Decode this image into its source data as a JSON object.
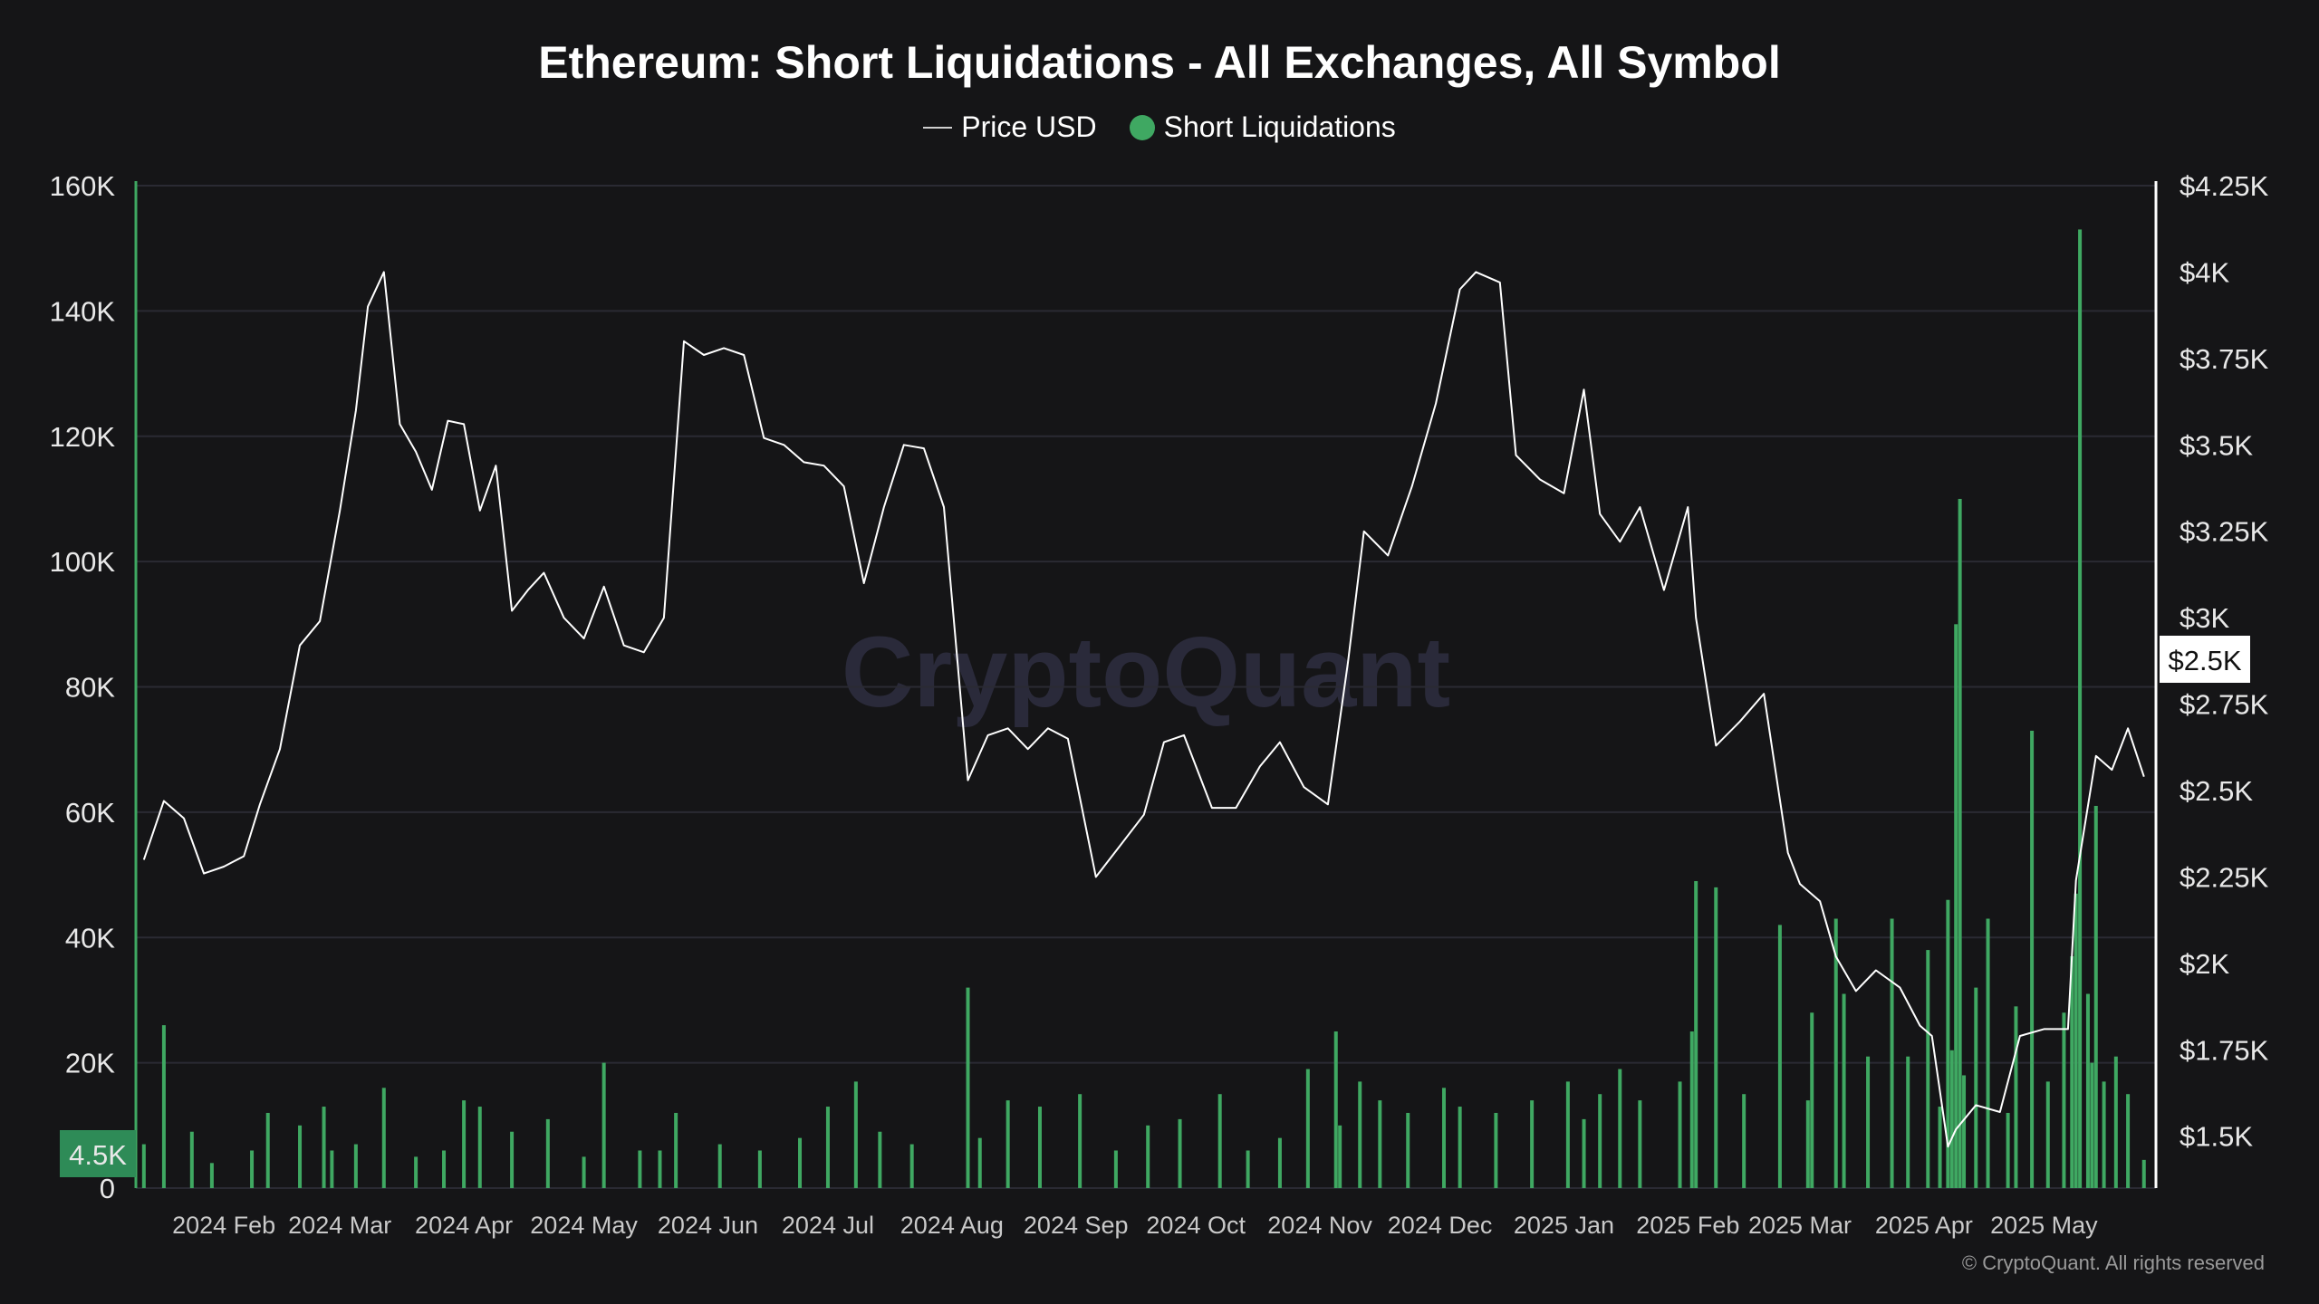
{
  "title": "Ethereum: Short Liquidations - All Exchanges, All Symbol",
  "legend": {
    "price": "Price USD",
    "short": "Short Liquidations"
  },
  "watermark": "CryptoQuant",
  "copyright": "© CryptoQuant. All rights reserved",
  "colors": {
    "background": "#151517",
    "price_line": "#ffffff",
    "bars": "#3fa862",
    "badge": "#2e8b57",
    "grid": "#2a2a33"
  },
  "chart_data": {
    "type": "bar",
    "title": "Ethereum: Short Liquidations - All Exchanges, All Symbol",
    "left_axis": {
      "ticks": [
        "0",
        "20K",
        "40K",
        "60K",
        "80K",
        "100K",
        "120K",
        "140K",
        "160K"
      ],
      "ylim": [
        0,
        160000
      ],
      "current_badge": "4.5K"
    },
    "right_axis": {
      "ticks": [
        "$1.5K",
        "$1.75K",
        "$2K",
        "$2.25K",
        "$2.5K",
        "$2.75K",
        "$3K",
        "$3.25K",
        "$3.5K",
        "$3.75K",
        "$4K",
        "$4.25K"
      ],
      "ylim": [
        1350,
        4250
      ],
      "current_badge": "$2.5K"
    },
    "x_labels": [
      "2024 Feb",
      "2024 Mar",
      "2024 Apr",
      "2024 May",
      "2024 Jun",
      "2024 Jul",
      "2024 Aug",
      "2024 Sep",
      "2024 Oct",
      "2024 Nov",
      "2024 Dec",
      "2025 Jan",
      "2025 Feb",
      "2025 Mar",
      "2025 Apr",
      "2025 May"
    ],
    "grid": true,
    "legend_position": "top-center",
    "series": [
      {
        "name": "Price USD",
        "type": "line",
        "axis": "right",
        "x": [
          "2024-01-12",
          "2024-01-17",
          "2024-01-22",
          "2024-01-27",
          "2024-02-01",
          "2024-02-06",
          "2024-02-10",
          "2024-02-15",
          "2024-02-20",
          "2024-02-25",
          "2024-03-01",
          "2024-03-05",
          "2024-03-08",
          "2024-03-12",
          "2024-03-16",
          "2024-03-20",
          "2024-03-24",
          "2024-03-28",
          "2024-04-01",
          "2024-04-05",
          "2024-04-09",
          "2024-04-13",
          "2024-04-17",
          "2024-04-21",
          "2024-04-26",
          "2024-05-01",
          "2024-05-06",
          "2024-05-11",
          "2024-05-16",
          "2024-05-21",
          "2024-05-26",
          "2024-05-31",
          "2024-06-05",
          "2024-06-10",
          "2024-06-15",
          "2024-06-20",
          "2024-06-25",
          "2024-06-30",
          "2024-07-05",
          "2024-07-10",
          "2024-07-15",
          "2024-07-20",
          "2024-07-25",
          "2024-07-30",
          "2024-08-05",
          "2024-08-10",
          "2024-08-15",
          "2024-08-20",
          "2024-08-25",
          "2024-08-30",
          "2024-09-06",
          "2024-09-12",
          "2024-09-18",
          "2024-09-23",
          "2024-09-28",
          "2024-10-05",
          "2024-10-11",
          "2024-10-17",
          "2024-10-22",
          "2024-10-28",
          "2024-11-03",
          "2024-11-08",
          "2024-11-12",
          "2024-11-18",
          "2024-11-24",
          "2024-11-30",
          "2024-12-06",
          "2024-12-10",
          "2024-12-16",
          "2024-12-20",
          "2024-12-26",
          "2025-01-01",
          "2025-01-06",
          "2025-01-10",
          "2025-01-15",
          "2025-01-20",
          "2025-01-26",
          "2025-02-01",
          "2025-02-03",
          "2025-02-08",
          "2025-02-14",
          "2025-02-20",
          "2025-02-26",
          "2025-03-01",
          "2025-03-06",
          "2025-03-10",
          "2025-03-15",
          "2025-03-20",
          "2025-03-26",
          "2025-03-31",
          "2025-04-03",
          "2025-04-07",
          "2025-04-09",
          "2025-04-14",
          "2025-04-20",
          "2025-04-25",
          "2025-05-01",
          "2025-05-07",
          "2025-05-09",
          "2025-05-14",
          "2025-05-18",
          "2025-05-22",
          "2025-05-26"
        ],
        "y": [
          2300,
          2470,
          2420,
          2260,
          2280,
          2310,
          2460,
          2620,
          2920,
          2990,
          3310,
          3600,
          3900,
          4000,
          3560,
          3480,
          3370,
          3570,
          3560,
          3310,
          3440,
          3020,
          3080,
          3130,
          3000,
          2940,
          3090,
          2920,
          2900,
          3000,
          3800,
          3760,
          3780,
          3760,
          3520,
          3500,
          3450,
          3440,
          3380,
          3100,
          3320,
          3500,
          3490,
          3320,
          2530,
          2660,
          2680,
          2620,
          2680,
          2650,
          2250,
          2340,
          2430,
          2640,
          2660,
          2450,
          2450,
          2570,
          2640,
          2510,
          2460,
          2870,
          3250,
          3180,
          3380,
          3620,
          3950,
          4000,
          3970,
          3470,
          3400,
          3360,
          3660,
          3300,
          3220,
          3320,
          3080,
          3320,
          3000,
          2630,
          2700,
          2780,
          2320,
          2230,
          2180,
          2020,
          1920,
          1980,
          1930,
          1820,
          1790,
          1470,
          1520,
          1590,
          1570,
          1790,
          1810,
          1810,
          2240,
          2600,
          2560,
          2680,
          2540
        ]
      },
      {
        "name": "Short Liquidations",
        "type": "bar",
        "axis": "left",
        "x": [
          "2024-01-12",
          "2024-01-17",
          "2024-01-24",
          "2024-01-29",
          "2024-02-08",
          "2024-02-12",
          "2024-02-20",
          "2024-02-26",
          "2024-02-28",
          "2024-03-05",
          "2024-03-12",
          "2024-03-20",
          "2024-03-27",
          "2024-04-01",
          "2024-04-05",
          "2024-04-13",
          "2024-04-22",
          "2024-05-01",
          "2024-05-06",
          "2024-05-15",
          "2024-05-20",
          "2024-05-24",
          "2024-06-04",
          "2024-06-14",
          "2024-06-24",
          "2024-07-01",
          "2024-07-08",
          "2024-07-14",
          "2024-07-22",
          "2024-08-05",
          "2024-08-08",
          "2024-08-15",
          "2024-08-23",
          "2024-09-02",
          "2024-09-11",
          "2024-09-19",
          "2024-09-27",
          "2024-10-07",
          "2024-10-14",
          "2024-10-22",
          "2024-10-29",
          "2024-11-05",
          "2024-11-06",
          "2024-11-11",
          "2024-11-16",
          "2024-11-23",
          "2024-12-02",
          "2024-12-06",
          "2024-12-15",
          "2024-12-24",
          "2025-01-02",
          "2025-01-06",
          "2025-01-10",
          "2025-01-15",
          "2025-01-20",
          "2025-01-30",
          "2025-02-02",
          "2025-02-03",
          "2025-02-08",
          "2025-02-15",
          "2025-02-24",
          "2025-03-03",
          "2025-03-04",
          "2025-03-10",
          "2025-03-12",
          "2025-03-18",
          "2025-03-24",
          "2025-03-28",
          "2025-04-02",
          "2025-04-05",
          "2025-04-07",
          "2025-04-08",
          "2025-04-09",
          "2025-04-10",
          "2025-04-11",
          "2025-04-14",
          "2025-04-17",
          "2025-04-22",
          "2025-04-24",
          "2025-04-28",
          "2025-05-02",
          "2025-05-06",
          "2025-05-08",
          "2025-05-09",
          "2025-05-10",
          "2025-05-12",
          "2025-05-13",
          "2025-05-14",
          "2025-05-16",
          "2025-05-19",
          "2025-05-22",
          "2025-05-26"
        ],
        "values": [
          7000,
          26000,
          9000,
          4000,
          6000,
          12000,
          10000,
          13000,
          6000,
          7000,
          16000,
          5000,
          6000,
          14000,
          13000,
          9000,
          11000,
          5000,
          20000,
          6000,
          6000,
          12000,
          7000,
          6000,
          8000,
          13000,
          17000,
          9000,
          7000,
          32000,
          8000,
          14000,
          13000,
          15000,
          6000,
          10000,
          11000,
          15000,
          6000,
          8000,
          19000,
          25000,
          10000,
          17000,
          14000,
          12000,
          16000,
          13000,
          12000,
          14000,
          17000,
          11000,
          15000,
          19000,
          14000,
          17000,
          25000,
          49000,
          48000,
          15000,
          42000,
          14000,
          28000,
          43000,
          31000,
          21000,
          43000,
          21000,
          38000,
          13000,
          46000,
          22000,
          90000,
          110000,
          18000,
          32000,
          43000,
          12000,
          29000,
          73000,
          17000,
          28000,
          37000,
          47000,
          153000,
          31000,
          20000,
          61000,
          17000,
          21000,
          15000,
          4500
        ]
      }
    ]
  }
}
